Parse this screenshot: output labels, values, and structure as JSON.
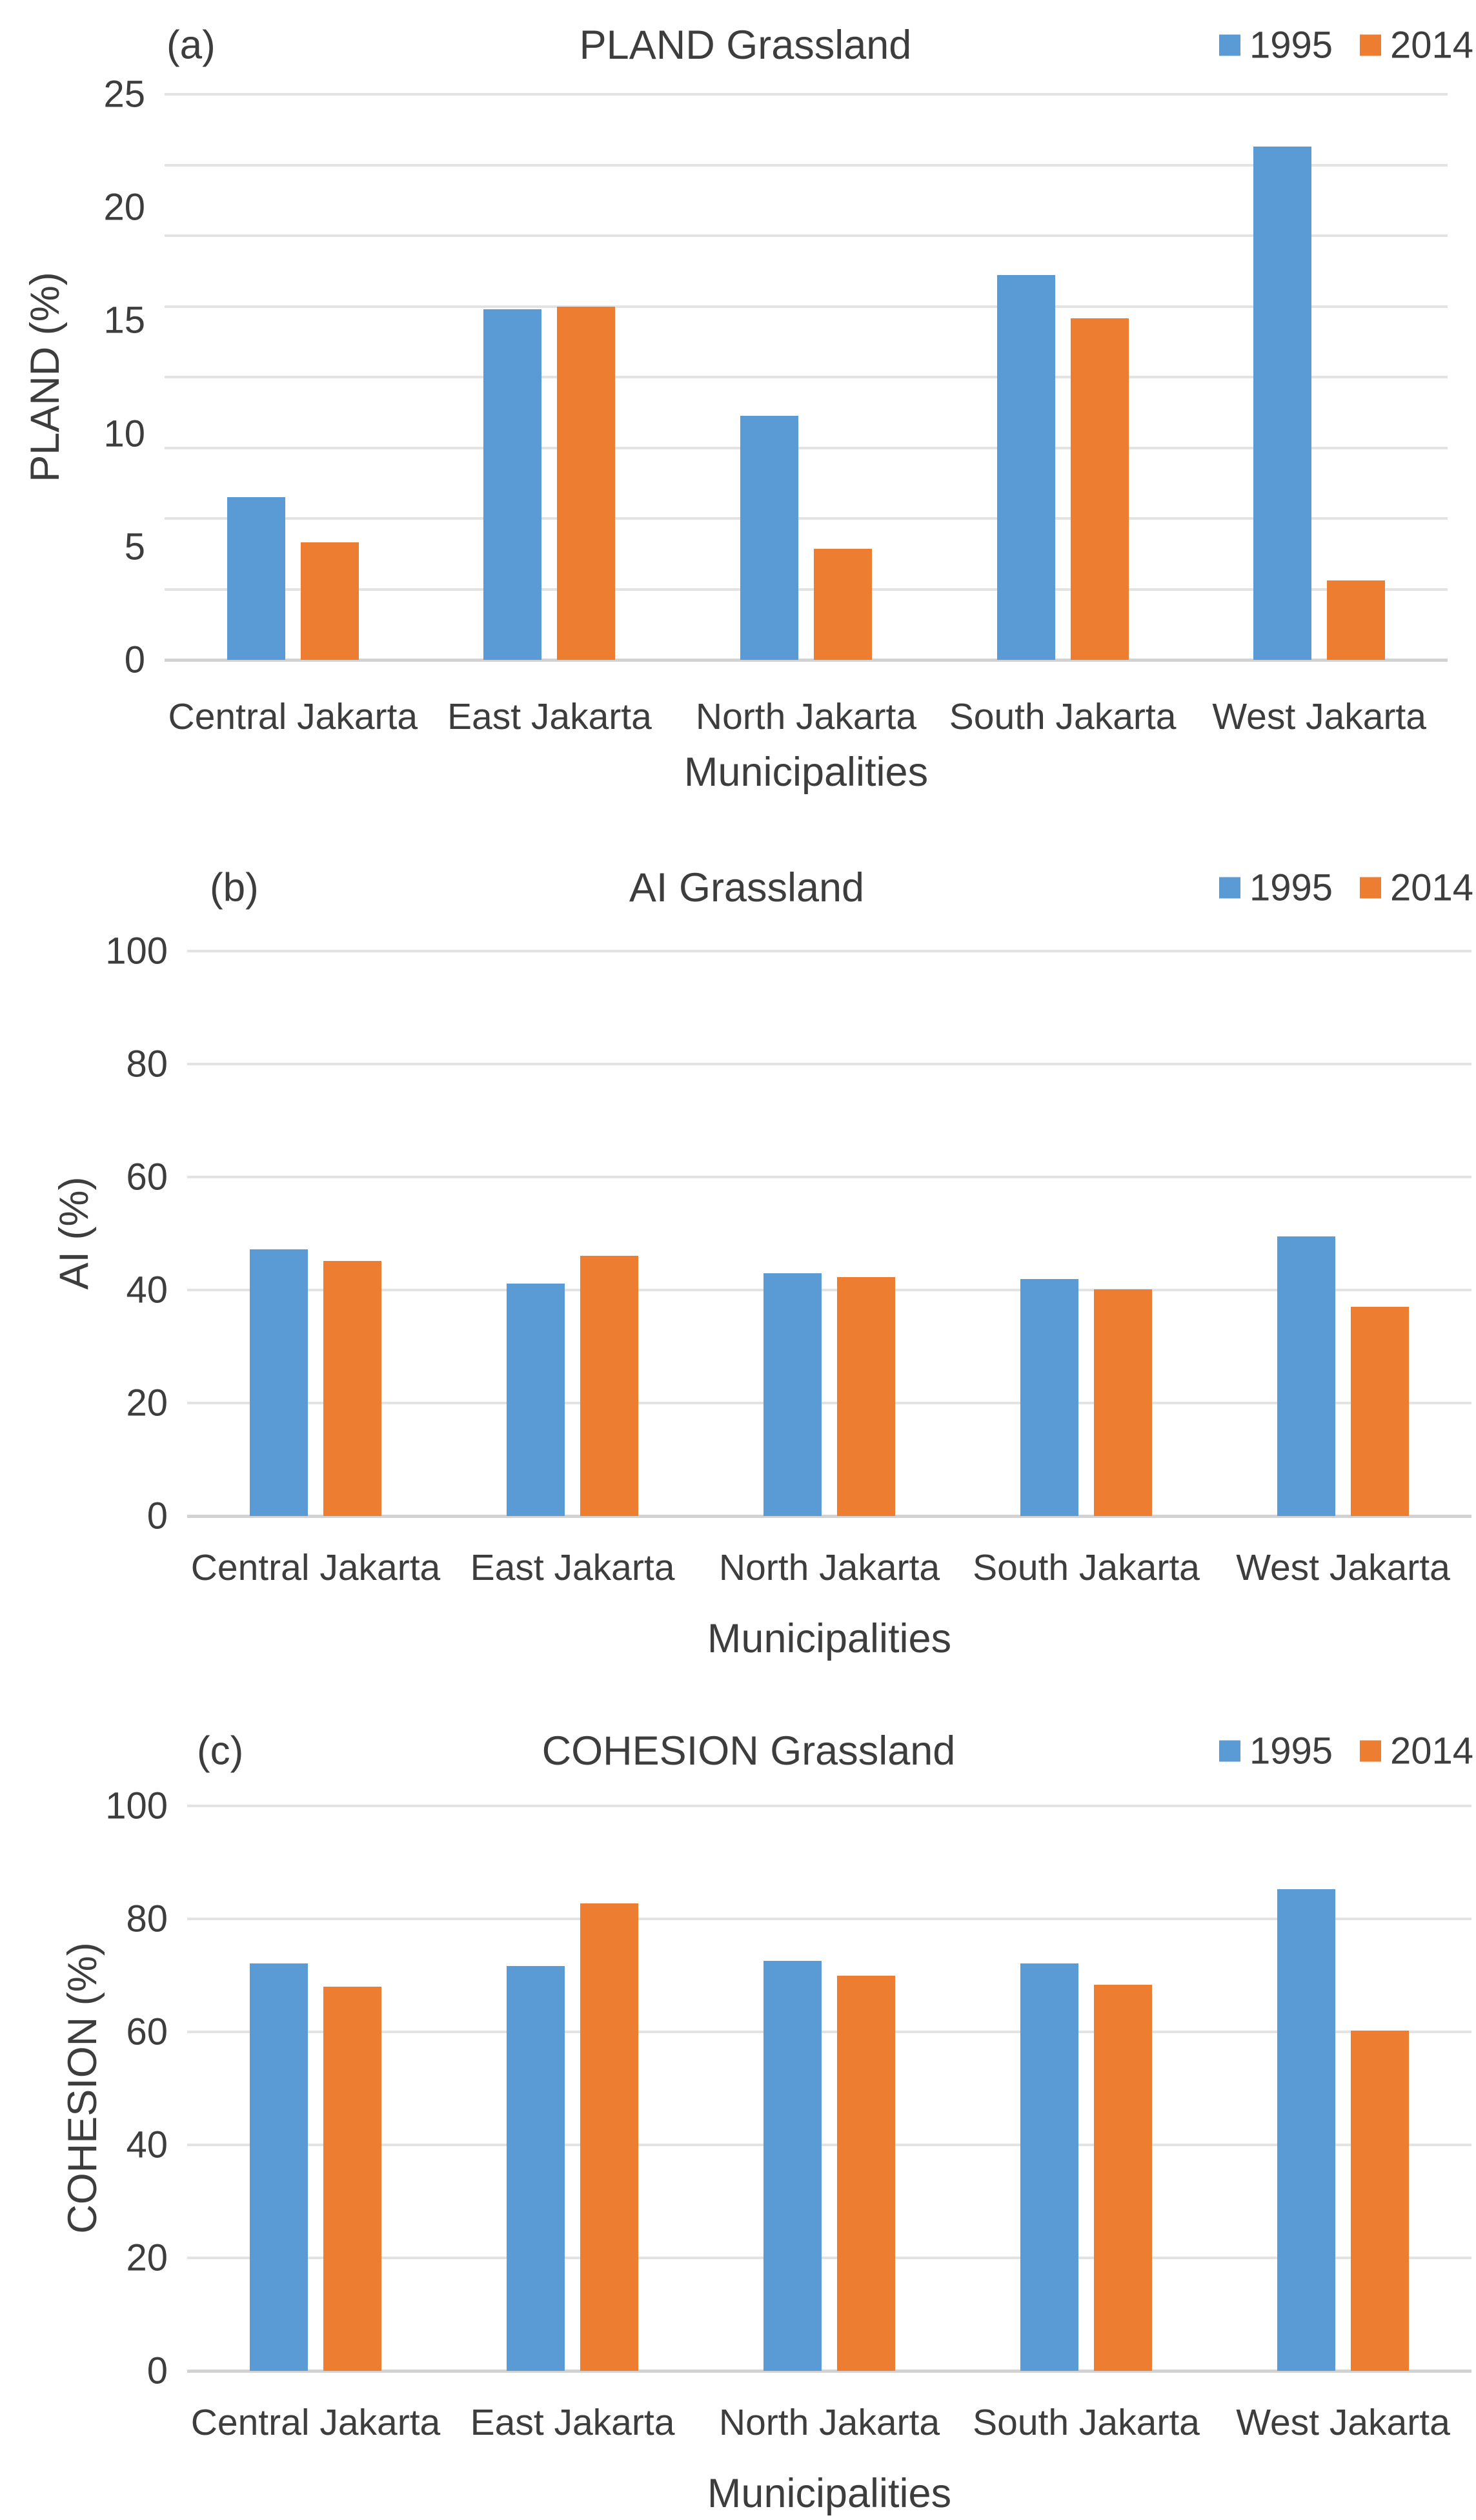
{
  "x_axis_title": "Municipalities",
  "categories": [
    "Central Jakarta",
    "East Jakarta",
    "North Jakarta",
    "South Jakarta",
    "West Jakarta"
  ],
  "legend": {
    "items": [
      {
        "label": "1995",
        "color": "#5B9BD5"
      },
      {
        "label": "2014",
        "color": "#ED7D31"
      }
    ]
  },
  "colors": {
    "series_1995": "#5B9BD5",
    "series_2014": "#ED7D31",
    "gridline": "#e3e3e3",
    "axis_line": "#d2d2d2",
    "text": "#3d3d3d",
    "background": "#ffffff"
  },
  "chart_data": [
    {
      "type": "bar",
      "panel": "(a)",
      "title": "PLAND Grassland",
      "xlabel": "Municipalities",
      "ylabel": "PLAND (%)",
      "ylim": [
        0,
        25
      ],
      "yticks": [
        0,
        5,
        10,
        15,
        20,
        25
      ],
      "grid_divisions": 8,
      "grid": "horizontal",
      "legend_position": "top-right",
      "categories": [
        "Central Jakarta",
        "East Jakarta",
        "North Jakarta",
        "South Jakarta",
        "West Jakarta"
      ],
      "series": [
        {
          "name": "1995",
          "color": "#5B9BD5",
          "values": [
            7.2,
            15.5,
            10.8,
            17.0,
            22.7
          ]
        },
        {
          "name": "2014",
          "color": "#ED7D31",
          "values": [
            5.2,
            15.6,
            4.9,
            15.1,
            3.5
          ]
        }
      ]
    },
    {
      "type": "bar",
      "panel": "(b)",
      "title": "AI Grassland",
      "xlabel": "Municipalities",
      "ylabel": "AI (%)",
      "ylim": [
        0,
        100
      ],
      "yticks": [
        0,
        20,
        40,
        60,
        80,
        100
      ],
      "grid_divisions": 5,
      "grid": "horizontal",
      "legend_position": "top-right",
      "categories": [
        "Central Jakarta",
        "East Jakarta",
        "North Jakarta",
        "South Jakarta",
        "West Jakarta"
      ],
      "series": [
        {
          "name": "1995",
          "color": "#5B9BD5",
          "values": [
            47.2,
            41.1,
            43.0,
            41.9,
            49.5
          ]
        },
        {
          "name": "2014",
          "color": "#ED7D31",
          "values": [
            45.1,
            46.1,
            42.3,
            40.1,
            37.0
          ]
        }
      ]
    },
    {
      "type": "bar",
      "panel": "(c)",
      "title": "COHESION Grassland",
      "xlabel": "Municipalities",
      "ylabel": "COHESION (%)",
      "ylim": [
        0,
        100
      ],
      "yticks": [
        0,
        20,
        40,
        60,
        80,
        100
      ],
      "grid_divisions": 5,
      "grid": "horizontal",
      "legend_position": "top-right",
      "categories": [
        "Central Jakarta",
        "East Jakarta",
        "North Jakarta",
        "South Jakarta",
        "West Jakarta"
      ],
      "series": [
        {
          "name": "1995",
          "color": "#5B9BD5",
          "values": [
            72.1,
            71.7,
            72.6,
            72.1,
            85.3
          ]
        },
        {
          "name": "2014",
          "color": "#ED7D31",
          "values": [
            68.0,
            82.8,
            69.9,
            68.3,
            60.2
          ]
        }
      ]
    }
  ]
}
